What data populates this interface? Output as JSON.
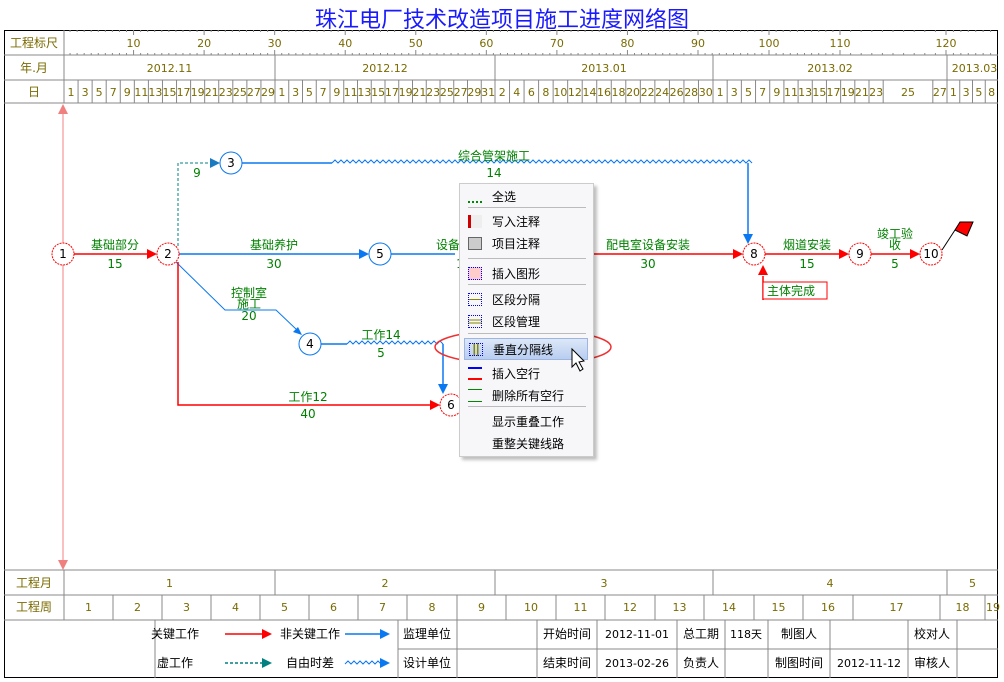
{
  "title": "珠江电厂技术改造项目施工进度网络图",
  "header": {
    "ruler_label": "工程标尺",
    "month_label": "年.月",
    "day_label": "日",
    "ruler_ticks": [
      "10",
      "20",
      "30",
      "40",
      "50",
      "60",
      "70",
      "80",
      "90",
      "100",
      "110",
      "120"
    ],
    "months": [
      "2012.11",
      "2012.12",
      "2013.01",
      "2013.02",
      "2013.03"
    ],
    "days": [
      [
        "1",
        "3",
        "5",
        "7",
        "9",
        "11",
        "13",
        "15",
        "17",
        "19",
        "21",
        "23",
        "25",
        "27",
        "29"
      ],
      [
        "1",
        "3",
        "5",
        "7",
        "9",
        "11",
        "13",
        "15",
        "17",
        "19",
        "21",
        "23",
        "25",
        "27",
        "29",
        "31"
      ],
      [
        "2",
        "4",
        "6",
        "8",
        "10",
        "12",
        "14",
        "16",
        "18",
        "20",
        "22",
        "24",
        "26",
        "28",
        "30"
      ],
      [
        "1",
        "3",
        "5",
        "7",
        "9",
        "11",
        "13",
        "15",
        "17",
        "19",
        "21",
        "23",
        "25",
        "27"
      ],
      [
        "1",
        "3",
        "5",
        "8"
      ]
    ]
  },
  "network": {
    "nodes": [
      "1",
      "2",
      "3",
      "4",
      "5",
      "6",
      "8",
      "9",
      "10"
    ],
    "activities": [
      {
        "name": "基础部分",
        "duration": "15",
        "type": "critical"
      },
      {
        "name": "基础养护",
        "duration": "30",
        "type": "noncritical"
      },
      {
        "name": "",
        "duration": "9",
        "type": "dummy"
      },
      {
        "name": "综合管架施工",
        "duration": "14",
        "type": "float"
      },
      {
        "name": "控制室施工",
        "line1": "控制室",
        "line2": "施工",
        "duration": "20",
        "type": "noncritical"
      },
      {
        "name": "工作14",
        "duration": "5",
        "type": "float"
      },
      {
        "name": "工作12",
        "duration": "40",
        "type": "critical"
      },
      {
        "name": "设备",
        "duration": "1",
        "type": "noncritical"
      },
      {
        "name": "配电室设备安装",
        "duration": "30",
        "type": "critical"
      },
      {
        "name": "烟道安装",
        "duration": "15",
        "type": "critical"
      },
      {
        "name": "竣工验收",
        "line1": "竣工验",
        "line2": "收",
        "duration": "5",
        "type": "critical"
      }
    ],
    "milestone": "主体完成",
    "colors": {
      "critical": "#ff0000",
      "noncritical": "#0a78f0",
      "dummy": "#008080",
      "label": "#008000"
    }
  },
  "context_menu": {
    "items": [
      {
        "label": "全选",
        "icon": "select-all-icon"
      },
      {
        "label": "写入注释",
        "icon": "write-note-icon"
      },
      {
        "label": "项目注释",
        "icon": "project-note-icon"
      },
      {
        "label": "插入图形",
        "icon": "insert-graphic-icon"
      },
      {
        "label": "区段分隔",
        "icon": "section-divide-icon"
      },
      {
        "label": "区段管理",
        "icon": "section-manage-icon"
      },
      {
        "label": "垂直分隔线",
        "icon": "vertical-divider-icon",
        "highlighted": true
      },
      {
        "label": "插入空行",
        "icon": "insert-row-icon"
      },
      {
        "label": "删除所有空行",
        "icon": "delete-rows-icon"
      },
      {
        "label": "显示重叠工作",
        "icon": ""
      },
      {
        "label": "重整关键线路",
        "icon": ""
      }
    ]
  },
  "footer": {
    "month_label": "工程月",
    "months": [
      "1",
      "2",
      "3",
      "4",
      "5"
    ],
    "week_label": "工程周",
    "weeks": [
      "1",
      "2",
      "3",
      "4",
      "5",
      "6",
      "7",
      "8",
      "9",
      "10",
      "11",
      "12",
      "13",
      "14",
      "15",
      "16",
      "17",
      "18",
      "19"
    ],
    "legend": {
      "critical": "关键工作",
      "noncritical": "非关键工作",
      "dummy": "虚工作",
      "float": "自由时差"
    },
    "info": {
      "supervisor": "监理单位",
      "designer": "设计单位",
      "start_label": "开始时间",
      "start": "2012-11-01",
      "end_label": "结束时间",
      "end": "2013-02-26",
      "duration_label": "总工期",
      "duration": "118天",
      "owner_label": "负责人",
      "drawer_label": "制图人",
      "draw_time_label": "制图时间",
      "draw_time": "2012-11-12",
      "checker_label": "校对人",
      "reviewer_label": "审核人"
    }
  }
}
